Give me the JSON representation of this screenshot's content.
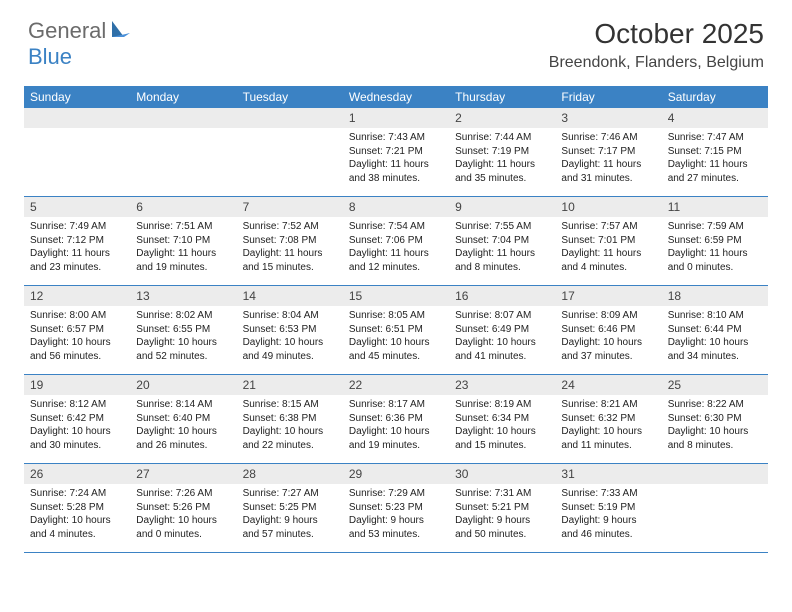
{
  "logo": {
    "text1": "General",
    "text2": "Blue"
  },
  "title": "October 2025",
  "location": "Breendonk, Flanders, Belgium",
  "header_color": "#3b82c4",
  "day_number_bg": "#ececec",
  "days": [
    "Sunday",
    "Monday",
    "Tuesday",
    "Wednesday",
    "Thursday",
    "Friday",
    "Saturday"
  ],
  "weeks": [
    [
      null,
      null,
      null,
      {
        "n": "1",
        "sr": "Sunrise: 7:43 AM",
        "ss": "Sunset: 7:21 PM",
        "dl1": "Daylight: 11 hours",
        "dl2": "and 38 minutes."
      },
      {
        "n": "2",
        "sr": "Sunrise: 7:44 AM",
        "ss": "Sunset: 7:19 PM",
        "dl1": "Daylight: 11 hours",
        "dl2": "and 35 minutes."
      },
      {
        "n": "3",
        "sr": "Sunrise: 7:46 AM",
        "ss": "Sunset: 7:17 PM",
        "dl1": "Daylight: 11 hours",
        "dl2": "and 31 minutes."
      },
      {
        "n": "4",
        "sr": "Sunrise: 7:47 AM",
        "ss": "Sunset: 7:15 PM",
        "dl1": "Daylight: 11 hours",
        "dl2": "and 27 minutes."
      }
    ],
    [
      {
        "n": "5",
        "sr": "Sunrise: 7:49 AM",
        "ss": "Sunset: 7:12 PM",
        "dl1": "Daylight: 11 hours",
        "dl2": "and 23 minutes."
      },
      {
        "n": "6",
        "sr": "Sunrise: 7:51 AM",
        "ss": "Sunset: 7:10 PM",
        "dl1": "Daylight: 11 hours",
        "dl2": "and 19 minutes."
      },
      {
        "n": "7",
        "sr": "Sunrise: 7:52 AM",
        "ss": "Sunset: 7:08 PM",
        "dl1": "Daylight: 11 hours",
        "dl2": "and 15 minutes."
      },
      {
        "n": "8",
        "sr": "Sunrise: 7:54 AM",
        "ss": "Sunset: 7:06 PM",
        "dl1": "Daylight: 11 hours",
        "dl2": "and 12 minutes."
      },
      {
        "n": "9",
        "sr": "Sunrise: 7:55 AM",
        "ss": "Sunset: 7:04 PM",
        "dl1": "Daylight: 11 hours",
        "dl2": "and 8 minutes."
      },
      {
        "n": "10",
        "sr": "Sunrise: 7:57 AM",
        "ss": "Sunset: 7:01 PM",
        "dl1": "Daylight: 11 hours",
        "dl2": "and 4 minutes."
      },
      {
        "n": "11",
        "sr": "Sunrise: 7:59 AM",
        "ss": "Sunset: 6:59 PM",
        "dl1": "Daylight: 11 hours",
        "dl2": "and 0 minutes."
      }
    ],
    [
      {
        "n": "12",
        "sr": "Sunrise: 8:00 AM",
        "ss": "Sunset: 6:57 PM",
        "dl1": "Daylight: 10 hours",
        "dl2": "and 56 minutes."
      },
      {
        "n": "13",
        "sr": "Sunrise: 8:02 AM",
        "ss": "Sunset: 6:55 PM",
        "dl1": "Daylight: 10 hours",
        "dl2": "and 52 minutes."
      },
      {
        "n": "14",
        "sr": "Sunrise: 8:04 AM",
        "ss": "Sunset: 6:53 PM",
        "dl1": "Daylight: 10 hours",
        "dl2": "and 49 minutes."
      },
      {
        "n": "15",
        "sr": "Sunrise: 8:05 AM",
        "ss": "Sunset: 6:51 PM",
        "dl1": "Daylight: 10 hours",
        "dl2": "and 45 minutes."
      },
      {
        "n": "16",
        "sr": "Sunrise: 8:07 AM",
        "ss": "Sunset: 6:49 PM",
        "dl1": "Daylight: 10 hours",
        "dl2": "and 41 minutes."
      },
      {
        "n": "17",
        "sr": "Sunrise: 8:09 AM",
        "ss": "Sunset: 6:46 PM",
        "dl1": "Daylight: 10 hours",
        "dl2": "and 37 minutes."
      },
      {
        "n": "18",
        "sr": "Sunrise: 8:10 AM",
        "ss": "Sunset: 6:44 PM",
        "dl1": "Daylight: 10 hours",
        "dl2": "and 34 minutes."
      }
    ],
    [
      {
        "n": "19",
        "sr": "Sunrise: 8:12 AM",
        "ss": "Sunset: 6:42 PM",
        "dl1": "Daylight: 10 hours",
        "dl2": "and 30 minutes."
      },
      {
        "n": "20",
        "sr": "Sunrise: 8:14 AM",
        "ss": "Sunset: 6:40 PM",
        "dl1": "Daylight: 10 hours",
        "dl2": "and 26 minutes."
      },
      {
        "n": "21",
        "sr": "Sunrise: 8:15 AM",
        "ss": "Sunset: 6:38 PM",
        "dl1": "Daylight: 10 hours",
        "dl2": "and 22 minutes."
      },
      {
        "n": "22",
        "sr": "Sunrise: 8:17 AM",
        "ss": "Sunset: 6:36 PM",
        "dl1": "Daylight: 10 hours",
        "dl2": "and 19 minutes."
      },
      {
        "n": "23",
        "sr": "Sunrise: 8:19 AM",
        "ss": "Sunset: 6:34 PM",
        "dl1": "Daylight: 10 hours",
        "dl2": "and 15 minutes."
      },
      {
        "n": "24",
        "sr": "Sunrise: 8:21 AM",
        "ss": "Sunset: 6:32 PM",
        "dl1": "Daylight: 10 hours",
        "dl2": "and 11 minutes."
      },
      {
        "n": "25",
        "sr": "Sunrise: 8:22 AM",
        "ss": "Sunset: 6:30 PM",
        "dl1": "Daylight: 10 hours",
        "dl2": "and 8 minutes."
      }
    ],
    [
      {
        "n": "26",
        "sr": "Sunrise: 7:24 AM",
        "ss": "Sunset: 5:28 PM",
        "dl1": "Daylight: 10 hours",
        "dl2": "and 4 minutes."
      },
      {
        "n": "27",
        "sr": "Sunrise: 7:26 AM",
        "ss": "Sunset: 5:26 PM",
        "dl1": "Daylight: 10 hours",
        "dl2": "and 0 minutes."
      },
      {
        "n": "28",
        "sr": "Sunrise: 7:27 AM",
        "ss": "Sunset: 5:25 PM",
        "dl1": "Daylight: 9 hours",
        "dl2": "and 57 minutes."
      },
      {
        "n": "29",
        "sr": "Sunrise: 7:29 AM",
        "ss": "Sunset: 5:23 PM",
        "dl1": "Daylight: 9 hours",
        "dl2": "and 53 minutes."
      },
      {
        "n": "30",
        "sr": "Sunrise: 7:31 AM",
        "ss": "Sunset: 5:21 PM",
        "dl1": "Daylight: 9 hours",
        "dl2": "and 50 minutes."
      },
      {
        "n": "31",
        "sr": "Sunrise: 7:33 AM",
        "ss": "Sunset: 5:19 PM",
        "dl1": "Daylight: 9 hours",
        "dl2": "and 46 minutes."
      },
      null
    ]
  ]
}
